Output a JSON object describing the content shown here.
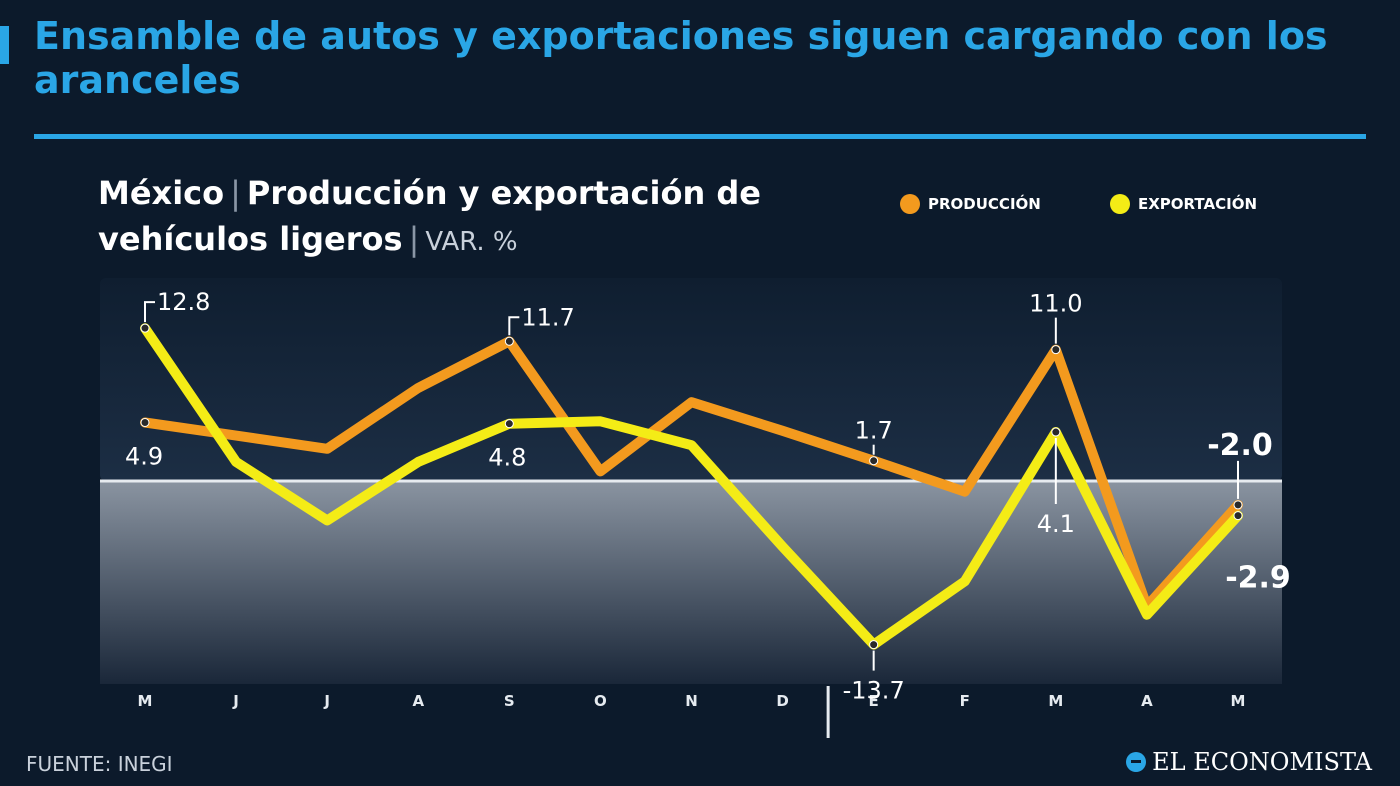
{
  "headline": "Ensamble de autos y exportaciones siguen cargando con los aranceles",
  "subtitle": {
    "place": "México",
    "topic": "Producción y exportación de vehículos ligeros",
    "unit": "VAR. %"
  },
  "legend": {
    "production": "PRODUCCIÓN",
    "export": "EXPORTACIÓN"
  },
  "source": "FUENTE: INEGI",
  "brand": "EL ECONOMISTA",
  "colors": {
    "production": "#f39a1e",
    "export": "#f4ec16",
    "accent": "#2aa6e6",
    "background": "#0c1a2b"
  },
  "chart_data": {
    "type": "line",
    "categories": [
      "M",
      "J",
      "J",
      "A",
      "S",
      "O",
      "N",
      "D",
      "E",
      "F",
      "M",
      "A",
      "M"
    ],
    "year_break_before_index": 8,
    "ylim": [
      -17,
      17
    ],
    "zero_line": true,
    "legend_position": "top-right",
    "series": [
      {
        "name": "PRODUCCIÓN",
        "values": [
          4.9,
          3.8,
          2.7,
          7.8,
          11.7,
          0.8,
          6.6,
          4.2,
          1.7,
          -0.9,
          11.0,
          -10.5,
          -2.0
        ]
      },
      {
        "name": "EXPORTACIÓN",
        "values": [
          12.8,
          1.6,
          -3.3,
          1.6,
          4.8,
          5.0,
          3.0,
          -5.5,
          -13.7,
          -8.4,
          4.1,
          -11.2,
          -2.9
        ]
      }
    ],
    "annotations": [
      {
        "series": 1,
        "index": 0,
        "text": "12.8"
      },
      {
        "series": 0,
        "index": 0,
        "text": "4.9"
      },
      {
        "series": 0,
        "index": 4,
        "text": "11.7"
      },
      {
        "series": 1,
        "index": 4,
        "text": "4.8"
      },
      {
        "series": 0,
        "index": 8,
        "text": "1.7"
      },
      {
        "series": 1,
        "index": 8,
        "text": "-13.7"
      },
      {
        "series": 0,
        "index": 10,
        "text": "11.0"
      },
      {
        "series": 1,
        "index": 10,
        "text": "4.1"
      },
      {
        "series": 0,
        "index": 12,
        "text": "-2.0"
      },
      {
        "series": 1,
        "index": 12,
        "text": "-2.9"
      }
    ]
  }
}
